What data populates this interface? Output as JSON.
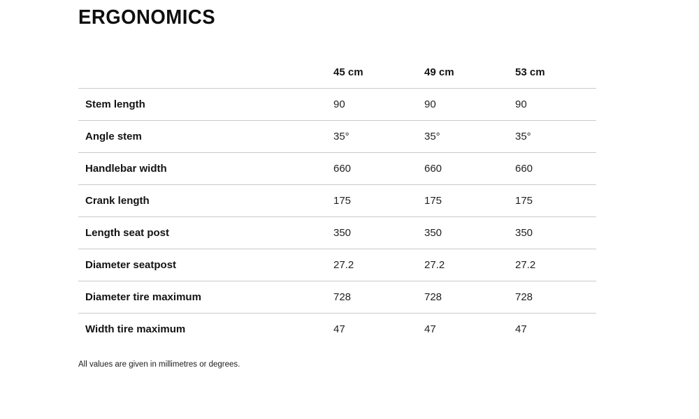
{
  "page": {
    "title": "ERGONOMICS",
    "footnote": "All values are given in millimetres or degrees."
  },
  "table": {
    "columns": [
      "45 cm",
      "49 cm",
      "53 cm"
    ],
    "rows": [
      {
        "label": "Stem length",
        "values": [
          "90",
          "90",
          "90"
        ]
      },
      {
        "label": "Angle stem",
        "values": [
          "35°",
          "35°",
          "35°"
        ]
      },
      {
        "label": "Handlebar width",
        "values": [
          "660",
          "660",
          "660"
        ]
      },
      {
        "label": "Crank length",
        "values": [
          "175",
          "175",
          "175"
        ]
      },
      {
        "label": "Length seat post",
        "values": [
          "350",
          "350",
          "350"
        ]
      },
      {
        "label": "Diameter seatpost",
        "values": [
          "27.2",
          "27.2",
          "27.2"
        ]
      },
      {
        "label": "Diameter tire maximum",
        "values": [
          "728",
          "728",
          "728"
        ]
      },
      {
        "label": "Width tire maximum",
        "values": [
          "47",
          "47",
          "47"
        ]
      }
    ]
  },
  "colors": {
    "title_text": "#0e0e0e",
    "body_text": "#222222",
    "divider": "#c9c9c9",
    "background": "#ffffff"
  }
}
